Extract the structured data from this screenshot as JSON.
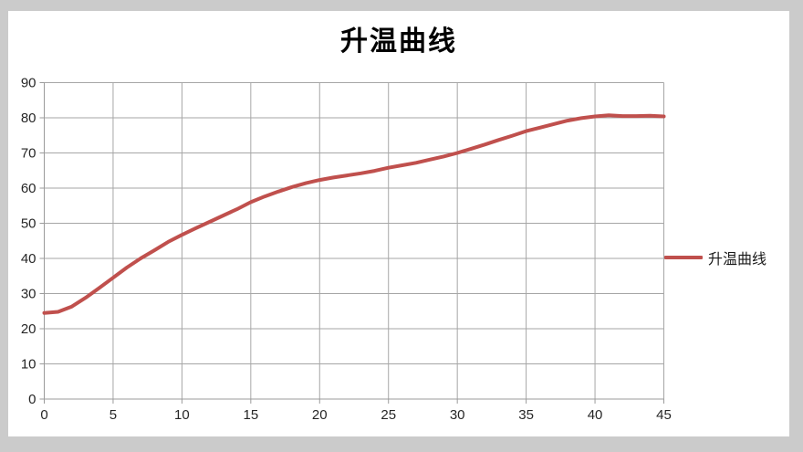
{
  "chart_data": {
    "type": "line",
    "title": "升温曲线",
    "xlabel": "",
    "ylabel": "",
    "xlim": [
      0,
      45
    ],
    "ylim": [
      0,
      90
    ],
    "x_ticks": [
      0,
      5,
      10,
      15,
      20,
      25,
      30,
      35,
      40,
      45
    ],
    "y_ticks": [
      0,
      10,
      20,
      30,
      40,
      50,
      60,
      70,
      80,
      90
    ],
    "grid": "both",
    "legend_position": "right",
    "legend_label": "升温曲线",
    "x_start": 0,
    "x_step": 1,
    "series": [
      {
        "name": "升温曲线",
        "color": "#C0504D",
        "values": [
          24.5,
          24.8,
          26.3,
          28.8,
          31.6,
          34.5,
          37.4,
          40.0,
          42.3,
          44.7,
          46.7,
          48.6,
          50.4,
          52.2,
          54.0,
          56.0,
          57.6,
          59.0,
          60.3,
          61.4,
          62.3,
          63.0,
          63.6,
          64.2,
          64.9,
          65.8,
          66.5,
          67.2,
          68.1,
          69.0,
          70.0,
          71.2,
          72.4,
          73.7,
          74.9,
          76.2,
          77.2,
          78.2,
          79.2,
          79.9,
          80.4,
          80.7,
          80.5,
          80.5,
          80.6,
          80.4
        ]
      }
    ]
  },
  "style": {
    "frame_background": "#CBCBCB",
    "chart_background": "#FFFFFF",
    "series_color": "#C0504D",
    "grid_color": "#A6A6A6",
    "axis_color": "#9B9B9B",
    "label_color": "#262626",
    "title_color": "#000000"
  }
}
